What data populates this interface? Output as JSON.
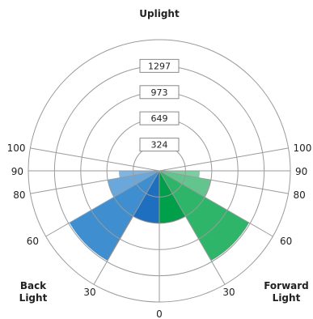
{
  "chart_data": {
    "type": "polar-bar",
    "title": "Uplight",
    "side_labels": {
      "back": [
        "Back",
        "Light"
      ],
      "forward": [
        "Forward",
        "Light"
      ]
    },
    "radial_ticks": [
      "324",
      "649",
      "973",
      "1297"
    ],
    "radial_max": 1621,
    "angle_ticks": {
      "left": [
        "0",
        "30",
        "60",
        "80",
        "90",
        "100"
      ],
      "right": [
        "30",
        "60",
        "80",
        "90",
        "100"
      ]
    },
    "angle_tick_values": {
      "left": [
        0,
        30,
        60,
        80,
        90,
        100
      ],
      "right": [
        30,
        60,
        80,
        90,
        100
      ]
    },
    "series": [
      {
        "name": "Back Light",
        "side": "left",
        "color_dark": "#1e6fbf",
        "color_mid": "#3f8fd0",
        "color_light": "#6aa8dc",
        "zones": [
          {
            "from": 0,
            "to": 30,
            "value": 649
          },
          {
            "from": 30,
            "to": 60,
            "value": 1283
          },
          {
            "from": 60,
            "to": 80,
            "value": 649
          },
          {
            "from": 80,
            "to": 90,
            "value": 500
          }
        ]
      },
      {
        "name": "Forward Light",
        "side": "right",
        "color_dark": "#00a04a",
        "color_mid": "#2fb56a",
        "color_light": "#63c58e",
        "zones": [
          {
            "from": 0,
            "to": 30,
            "value": 649
          },
          {
            "from": 30,
            "to": 60,
            "value": 1283
          },
          {
            "from": 60,
            "to": 80,
            "value": 649
          },
          {
            "from": 80,
            "to": 90,
            "value": 500
          }
        ]
      }
    ]
  }
}
